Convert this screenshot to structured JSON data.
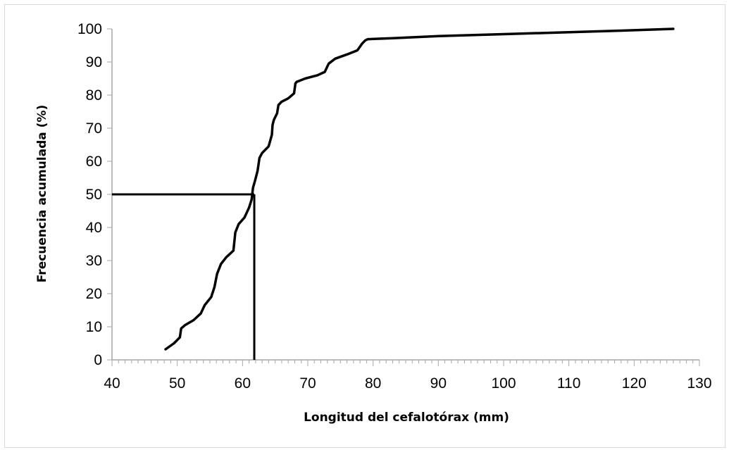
{
  "chart_data": {
    "type": "line",
    "title": "",
    "xlabel": "Longitud del cefalotórax (mm)",
    "ylabel": "Frecuencia acumulada (%)",
    "xlim": [
      40,
      130
    ],
    "ylim": [
      0,
      100
    ],
    "x_ticks": [
      "40",
      "50",
      "60",
      "70",
      "80",
      "90",
      "100",
      "110",
      "120",
      "130"
    ],
    "y_ticks": [
      "0",
      "10",
      "20",
      "30",
      "40",
      "50",
      "60",
      "70",
      "80",
      "90",
      "100"
    ],
    "grid": false,
    "line_color": "#000000",
    "series": [
      {
        "x": [
          48.2,
          49.5,
          50.4,
          50.6,
          51.2,
          52.5,
          53.6,
          54.2,
          55.2,
          55.7,
          56.1,
          56.7,
          57.5,
          58.6,
          58.9,
          59.4,
          60.3,
          61.0,
          61.4,
          61.6,
          61.9,
          62.3,
          62.6,
          63.0,
          64.0,
          64.5,
          64.6,
          64.8,
          65.3,
          65.5,
          66.0,
          67.0,
          67.9,
          68.1,
          68.3,
          69.6,
          71.5,
          72.6,
          73.2,
          74.2,
          76.3,
          77.6,
          78.3,
          78.8,
          79.2,
          80.5,
          83.0,
          90.0,
          100.0,
          110.0,
          120.0,
          126.0
        ],
        "y": [
          3.2,
          5.0,
          6.8,
          9.5,
          10.5,
          12.0,
          14.0,
          16.5,
          19.0,
          22.0,
          26.0,
          29.0,
          31.0,
          33.0,
          38.5,
          41.0,
          43.0,
          46.0,
          48.5,
          52.0,
          54.0,
          57.0,
          61.0,
          62.5,
          64.5,
          68.0,
          71.0,
          72.5,
          74.5,
          77.0,
          78.0,
          79.0,
          80.5,
          83.5,
          84.0,
          85.0,
          86.0,
          87.0,
          89.5,
          91.0,
          92.5,
          93.5,
          95.5,
          96.5,
          96.9,
          97.0,
          97.2,
          97.8,
          98.4,
          99.0,
          99.6,
          100.0
        ]
      }
    ],
    "reference_lines": [
      {
        "axis": "y",
        "value": 50,
        "from": 40,
        "to": 61.8
      },
      {
        "axis": "x",
        "value": 61.8,
        "from": 0,
        "to": 50
      }
    ]
  }
}
